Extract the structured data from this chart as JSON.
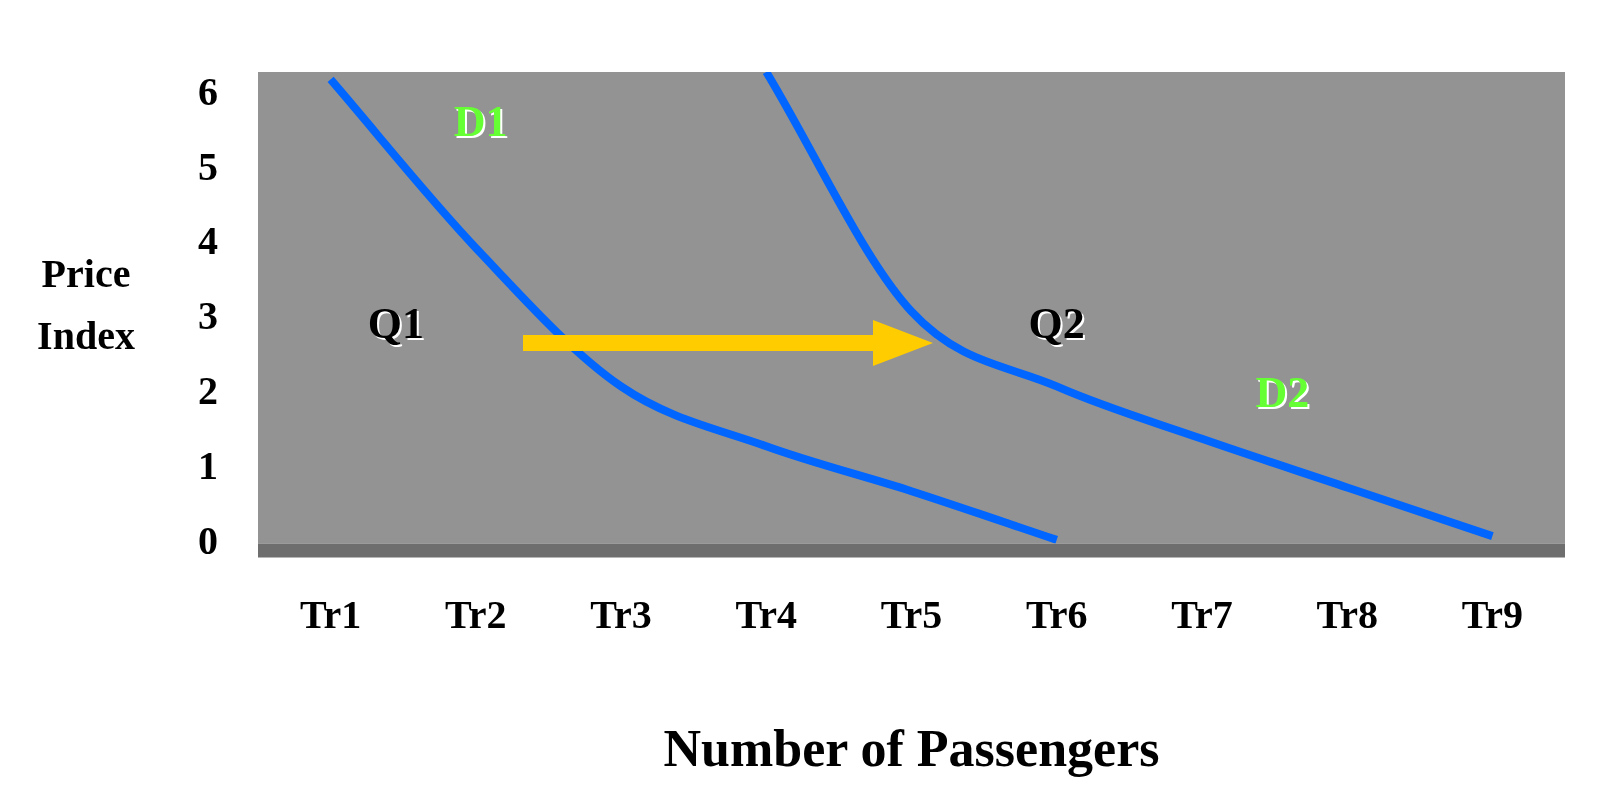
{
  "chart_data": {
    "type": "line",
    "xlabel": "Number of Passengers",
    "ylabel": "Price Index",
    "categories": [
      "Tr1",
      "Tr2",
      "Tr3",
      "Tr4",
      "Tr5",
      "Tr6",
      "Tr7",
      "Tr8",
      "Tr9"
    ],
    "series": [
      {
        "name": "D1",
        "color": "#0066ff",
        "values": [
          6.2,
          3.95,
          2.1,
          1.3,
          0.7,
          0.05,
          null,
          null,
          null
        ]
      },
      {
        "name": "D2",
        "color": "#0066ff",
        "values": [
          null,
          null,
          null,
          6.3,
          3.1,
          2.1,
          1.4,
          0.75,
          0.1
        ]
      }
    ],
    "ylim": [
      0,
      6.3
    ],
    "yticks": [
      0,
      1,
      2,
      3,
      4,
      5,
      6
    ],
    "grid": false,
    "legend": false,
    "marker": "none",
    "line_style": "solid",
    "annotations": [
      "Q1",
      "Q2"
    ]
  }
}
